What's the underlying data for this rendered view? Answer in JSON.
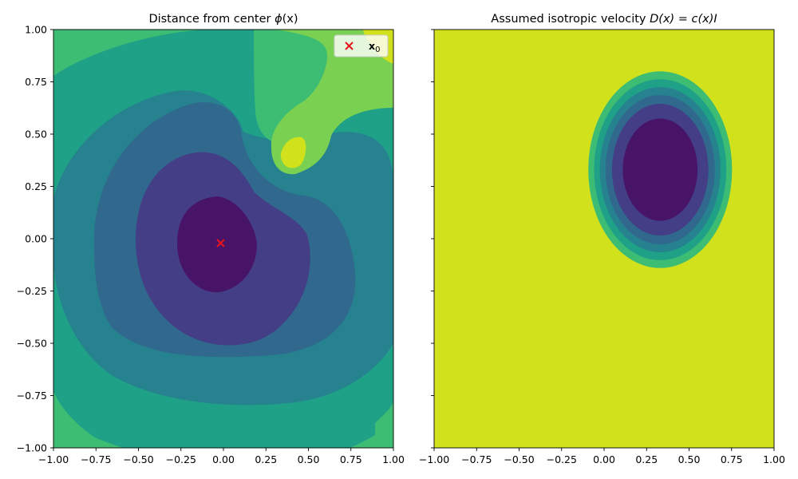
{
  "chart_data": [
    {
      "type": "heatmap",
      "subtype": "filled-contour",
      "title": "Distance from center ϕ(x)",
      "title_parts": {
        "text": "Distance from center ",
        "symbol": "ϕ",
        "arg": "(x)"
      },
      "xlim": [
        -1.0,
        1.0
      ],
      "ylim": [
        -1.0,
        1.0
      ],
      "xticks": [
        "−1.00",
        "−0.75",
        "−0.50",
        "−0.25",
        "0.00",
        "0.25",
        "0.50",
        "0.75",
        "1.00"
      ],
      "yticks": [
        "−1.00",
        "−0.75",
        "−0.50",
        "−0.25",
        "0.00",
        "0.25",
        "0.50",
        "0.75",
        "1.00"
      ],
      "xlabel": "",
      "ylabel": "",
      "colormap": "viridis",
      "level_colors": [
        "#481467",
        "#433e85",
        "#31688e",
        "#26828e",
        "#1fa187",
        "#3dbc74",
        "#7ad151",
        "#d1e11c"
      ],
      "center_point": {
        "x": -0.02,
        "y": -0.02,
        "marker": "x",
        "color": "#e8141b"
      },
      "legend": {
        "label": "x",
        "subscript": "0",
        "position": "upper right"
      }
    },
    {
      "type": "heatmap",
      "subtype": "filled-contour",
      "title": "Assumed isotropic velocity  D(x) = c(x)I",
      "title_parts": {
        "text": "Assumed isotropic velocity  ",
        "formula": "D(x) = c(x)I"
      },
      "xlim": [
        -1.0,
        1.0
      ],
      "ylim": [
        -1.0,
        1.0
      ],
      "xticks": [
        "−1.00",
        "−0.75",
        "−0.50",
        "−0.25",
        "0.00",
        "0.25",
        "0.50",
        "0.75",
        "1.00"
      ],
      "xlabel": "",
      "ylabel": "",
      "shares_y_axis": true,
      "colormap": "viridis",
      "background_color": "#d1e11c",
      "level_colors": [
        "#481467",
        "#433e85",
        "#31688e",
        "#26828e",
        "#1fa187",
        "#3dbc74",
        "#7ad151",
        "#d1e11c"
      ],
      "ellipse_center": {
        "x": 0.33,
        "y": 0.33
      },
      "ellipse_outer_semi_axes": {
        "x": 0.47,
        "y": 0.47
      }
    }
  ]
}
